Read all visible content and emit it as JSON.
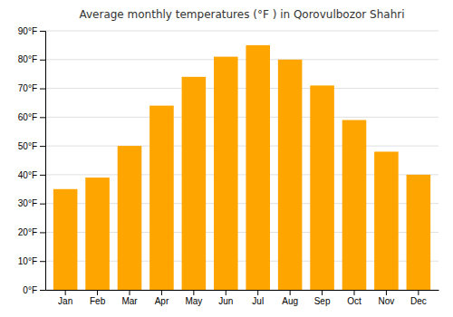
{
  "chart_data": {
    "type": "bar",
    "title": "Average monthly temperatures (°F ) in Qorovulbozor Shahri",
    "categories": [
      "Jan",
      "Feb",
      "Mar",
      "Apr",
      "May",
      "Jun",
      "Jul",
      "Aug",
      "Sep",
      "Oct",
      "Nov",
      "Dec"
    ],
    "values": [
      35,
      39,
      50,
      64,
      74,
      81,
      85,
      80,
      71,
      59,
      48,
      40
    ],
    "color": "#FFA500",
    "ylim": [
      0,
      90
    ],
    "yticks": [
      {
        "value": 0,
        "label": "0°F"
      },
      {
        "value": 10,
        "label": "10°F"
      },
      {
        "value": 20,
        "label": "20°F"
      },
      {
        "value": 30,
        "label": "30°F"
      },
      {
        "value": 40,
        "label": "40°F"
      },
      {
        "value": 50,
        "label": "50°F"
      },
      {
        "value": 60,
        "label": "60°F"
      },
      {
        "value": 70,
        "label": "70°F"
      },
      {
        "value": 80,
        "label": "80°F"
      },
      {
        "value": 90,
        "label": "90°F"
      }
    ],
    "grid": true
  }
}
